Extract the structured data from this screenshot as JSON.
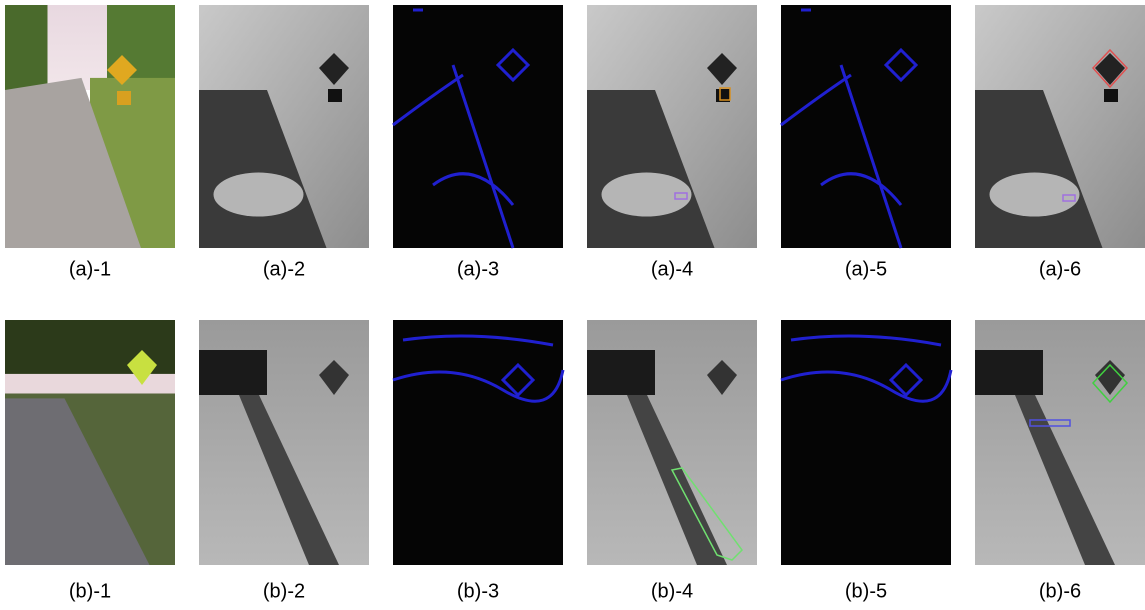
{
  "rows": [
    {
      "captions": [
        "(a)-1",
        "(a)-2",
        "(a)-3",
        "(a)-4",
        "(a)-5",
        "(a)-6"
      ]
    },
    {
      "captions": [
        "(b)-1",
        "(b)-2",
        "(b)-3",
        "(b)-4",
        "(b)-5",
        "(b)-6"
      ]
    }
  ]
}
